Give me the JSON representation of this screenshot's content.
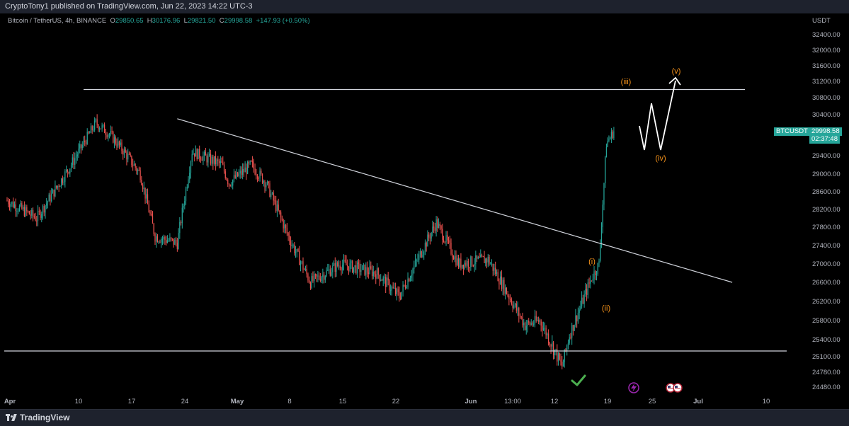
{
  "header": {
    "publish_text": "CryptoTony1 published on TradingView.com, Jun 22, 2023 14:22 UTC-3"
  },
  "legend": {
    "symbol": "Bitcoin / TetherUS, 4h, BINANCE",
    "o_label": "O",
    "o_value": "29850.65",
    "h_label": "H",
    "h_value": "30176.96",
    "l_label": "L",
    "l_value": "29821.50",
    "c_label": "C",
    "c_value": "29998.58",
    "change": "+147.93 (+0.50%)"
  },
  "price_axis": {
    "unit": "USDT",
    "ticks": [
      "32400.00",
      "32000.00",
      "31600.00",
      "31200.00",
      "30800.00",
      "30400.00",
      "29400.00",
      "29000.00",
      "28600.00",
      "28200.00",
      "27800.00",
      "27400.00",
      "27000.00",
      "26600.00",
      "26200.00",
      "25800.00",
      "25400.00",
      "25100.00",
      "24780.00",
      "24480.00"
    ]
  },
  "price_tags": {
    "ticker": "BTCUSDT",
    "last_price": "29998.58",
    "countdown": "02:37:48"
  },
  "time_axis": {
    "ticks": [
      "Apr",
      "10",
      "17",
      "24",
      "May",
      "8",
      "15",
      "22",
      "Jun",
      "13:00",
      "12",
      "19",
      "25",
      "Jul",
      "10"
    ]
  },
  "footer": {
    "brand": "TradingView"
  },
  "colors": {
    "up": "#26a69a",
    "down": "#ef5350",
    "wave_label": "#f7931a",
    "line": "#d1d4dc",
    "check": "#4caf50",
    "bolt": "#9c27b0",
    "tag_bg": "#26a69a"
  },
  "icons": [
    "check-icon",
    "lightning-icon",
    "flag-icon"
  ],
  "chart_data": {
    "type": "candlestick",
    "title": "Bitcoin / TetherUS, 4h, BINANCE",
    "y_unit": "USDT",
    "approx_price_path": {
      "x": [
        "Apr 1",
        "Apr 5",
        "Apr 10",
        "Apr 13",
        "Apr 15",
        "Apr 19",
        "Apr 21",
        "Apr 24",
        "Apr 26",
        "Apr 30",
        "May 1",
        "May 4",
        "May 6",
        "May 9",
        "May 12",
        "May 16",
        "May 21",
        "May 24",
        "May 29",
        "Jun 1",
        "Jun 5",
        "Jun 10",
        "Jun 12",
        "Jun 15",
        "Jun 16",
        "Jun 19",
        "Jun 20",
        "Jun 21",
        "Jun 22"
      ],
      "close": [
        28400,
        28000,
        29300,
        30200,
        29900,
        29000,
        27600,
        27450,
        29500,
        29200,
        28800,
        29200,
        28800,
        27600,
        26600,
        27000,
        26800,
        26300,
        27900,
        27000,
        27100,
        25700,
        25800,
        24900,
        25500,
        26700,
        27000,
        29700,
        30000
      ]
    },
    "horizontal_levels": [
      31000,
      25200
    ],
    "descending_trendline": [
      {
        "x": "Apr 24",
        "y": 30300
      },
      {
        "x": "Jul 8",
        "y": 26600
      }
    ],
    "wave_labels": [
      "(i)",
      "(ii)",
      "(iii)",
      "(iv)",
      "(v)"
    ],
    "projection": {
      "type": "zigzag",
      "to": "(v)"
    }
  }
}
